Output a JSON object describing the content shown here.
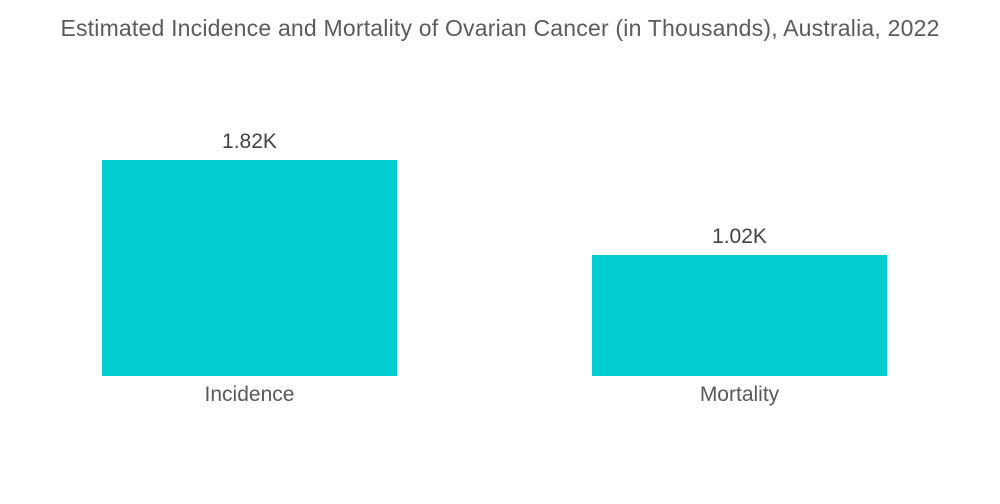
{
  "chart_data": {
    "type": "bar",
    "title": "Estimated Incidence and Mortality of Ovarian Cancer (in Thousands), Australia, 2022",
    "categories": [
      "Incidence",
      "Mortality"
    ],
    "values": [
      1.82,
      1.02
    ],
    "value_labels": [
      "1.82K",
      "1.02K"
    ],
    "unit": "Thousands",
    "xlabel": "",
    "ylabel": "",
    "ylim": [
      0,
      1.82
    ],
    "grid": false,
    "legend": false,
    "axes_visible": false,
    "bar_color": "#02CDD1",
    "background_color": "#FFFFFF",
    "title_color": "#5A5B5D",
    "value_label_color": "#414447",
    "category_label_color": "#57595B"
  }
}
